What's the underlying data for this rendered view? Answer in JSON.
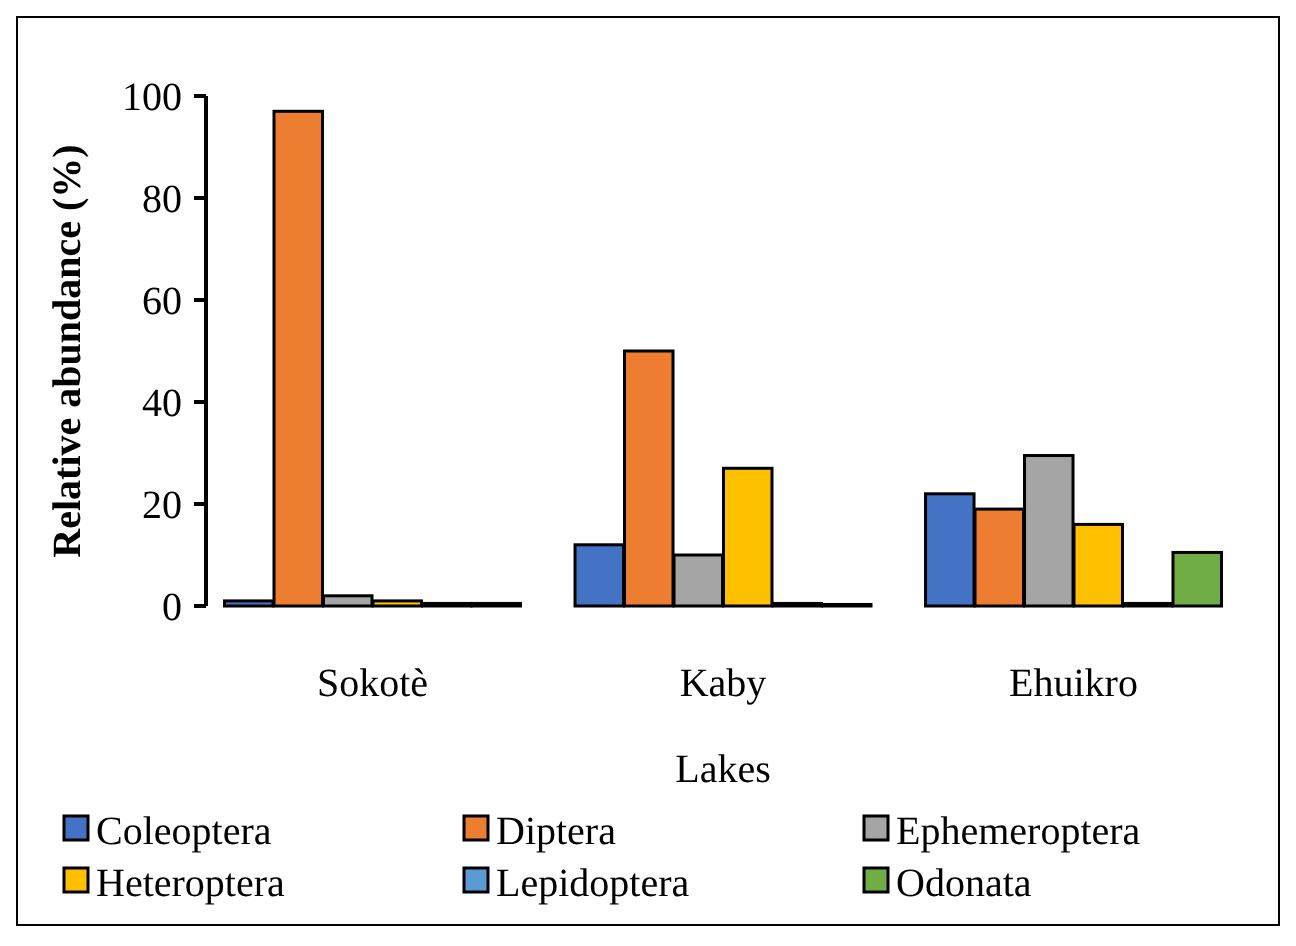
{
  "chart_data": {
    "type": "bar",
    "xlabel": "Lakes",
    "ylabel": "Relative abundance (%)",
    "categories": [
      "Sokotè",
      "Kaby",
      "Ehuikro"
    ],
    "series": [
      {
        "name": "Coleoptera",
        "color": "#4472c4",
        "values": [
          1,
          12,
          22
        ]
      },
      {
        "name": "Diptera",
        "color": "#ed7d31",
        "values": [
          97,
          50,
          19
        ]
      },
      {
        "name": "Ephemeroptera",
        "color": "#a5a5a5",
        "values": [
          2,
          10,
          29.5
        ]
      },
      {
        "name": "Heteroptera",
        "color": "#ffc000",
        "values": [
          1,
          27,
          16
        ]
      },
      {
        "name": "Lepidoptera",
        "color": "#5b9bd5",
        "values": [
          0.5,
          0.5,
          0.5
        ]
      },
      {
        "name": "Odonata",
        "color": "#70ad47",
        "values": [
          0.5,
          0.3,
          10.5
        ]
      }
    ],
    "ylim": [
      0,
      100
    ],
    "yticks": [
      0,
      20,
      40,
      60,
      80,
      100
    ],
    "grid": false,
    "legend": "bottom"
  }
}
